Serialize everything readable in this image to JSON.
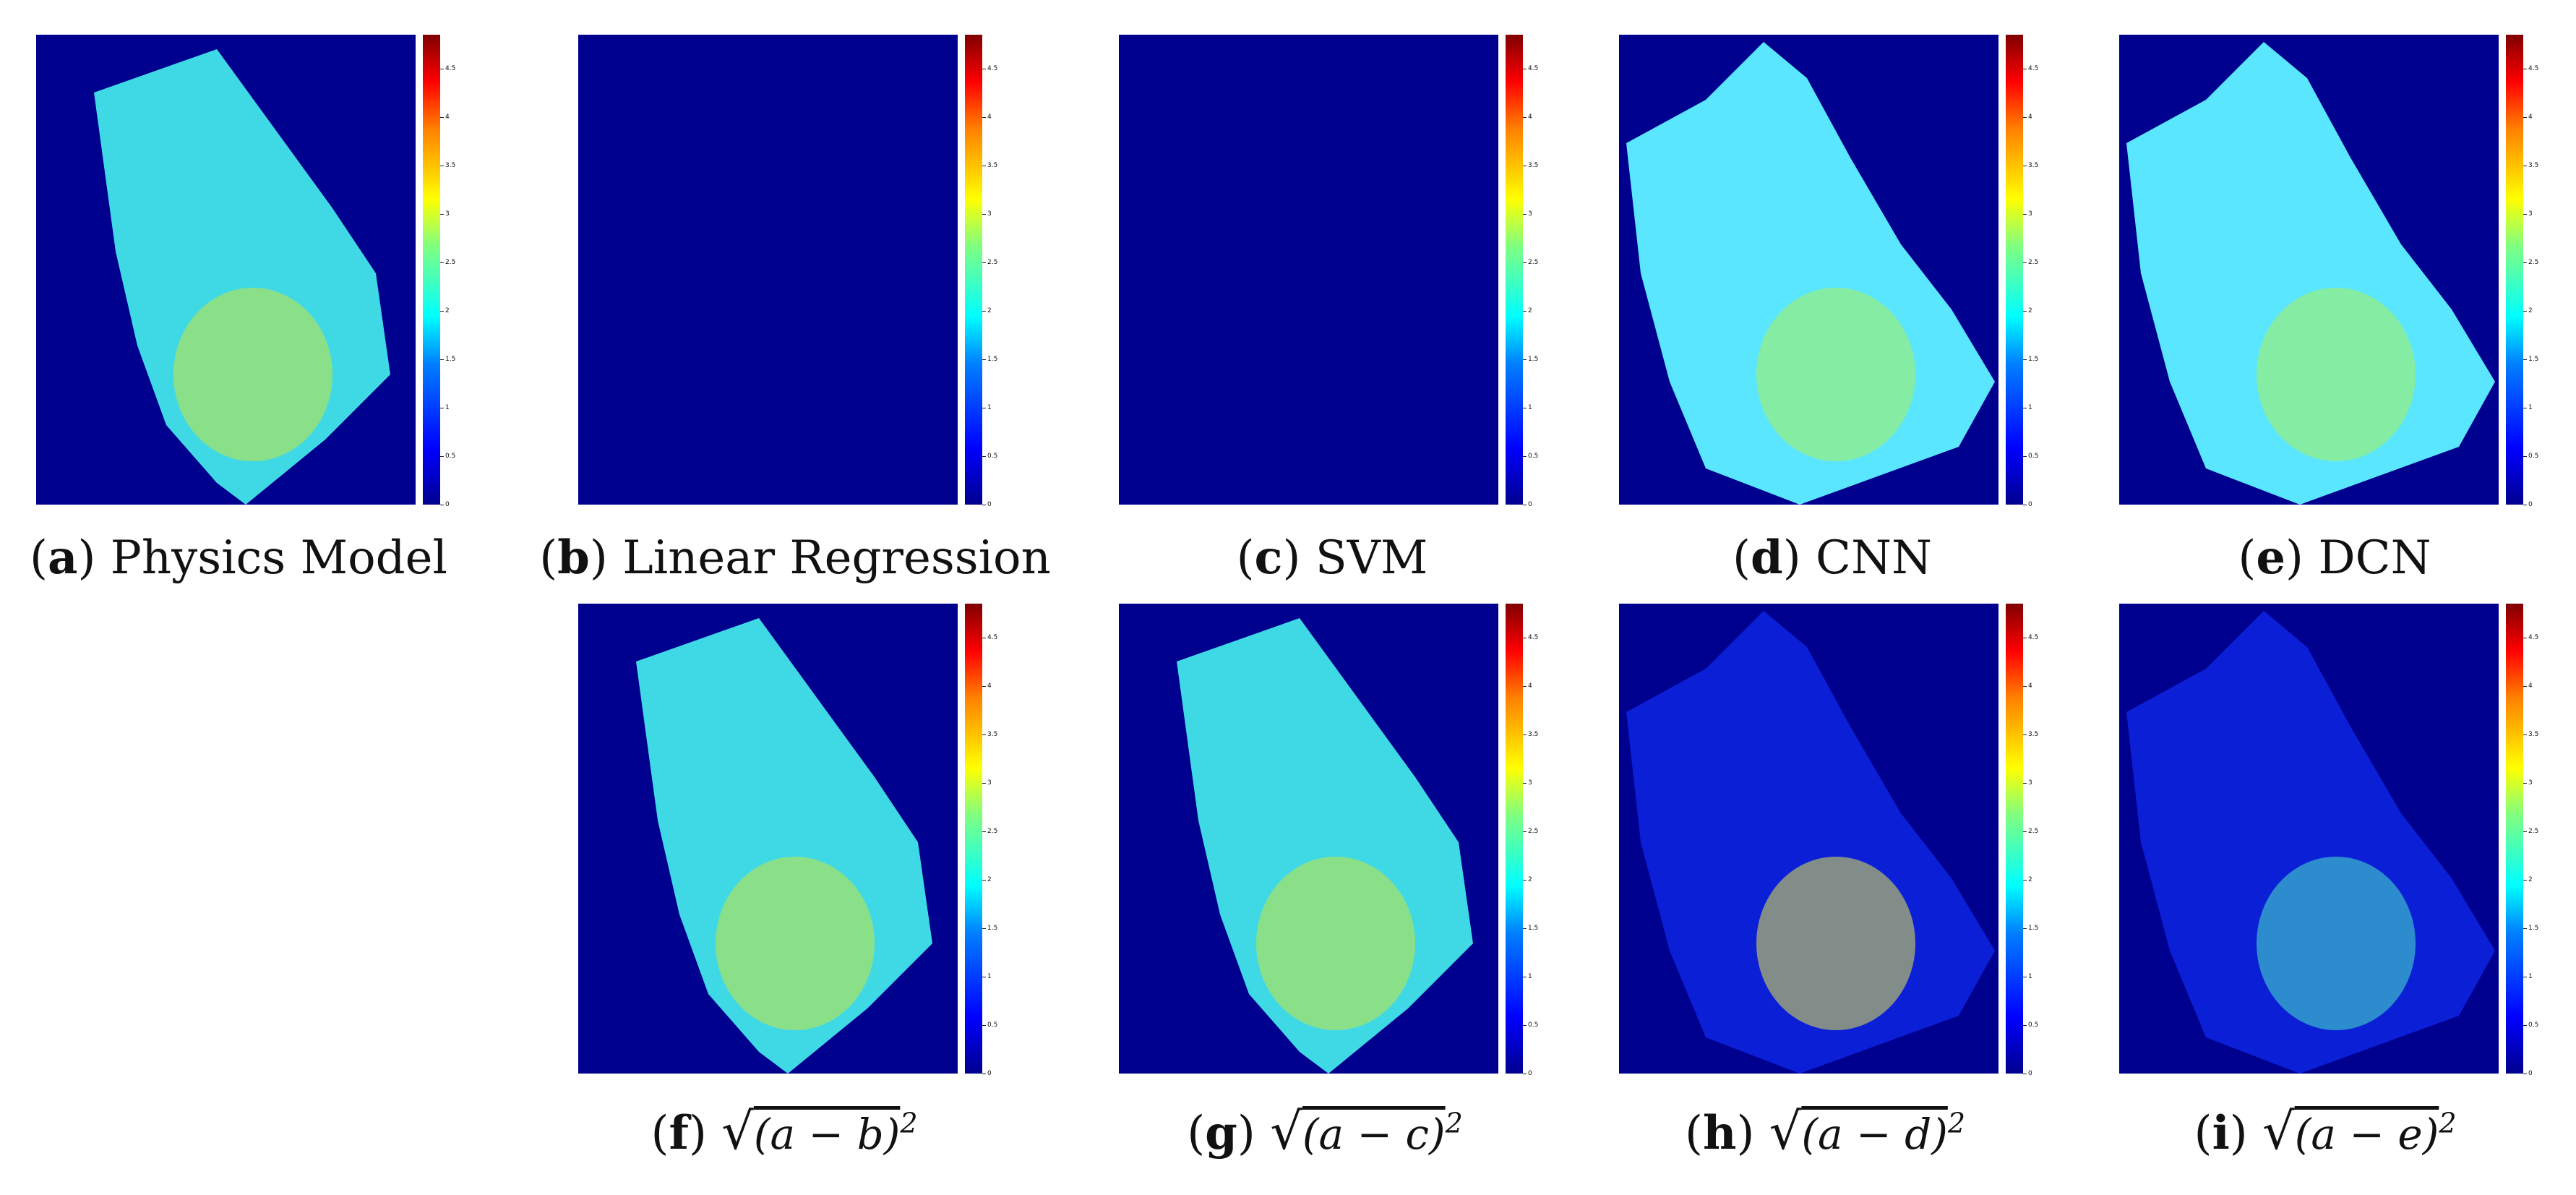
{
  "colorbar": {
    "ticks": [
      "4.5",
      "4",
      "3.5",
      "3",
      "2.5",
      "2",
      "1.5",
      "1",
      "0.5",
      "0"
    ],
    "tick_values": [
      4.5,
      4,
      3.5,
      3,
      2.5,
      2,
      1.5,
      1,
      0.5,
      0
    ],
    "max": 4.85,
    "colormap": "jet"
  },
  "panels": [
    {
      "key": "a",
      "name": "Physics Model",
      "fill": "#3fd9e6",
      "hot": "#c8e63c",
      "empty": false
    },
    {
      "key": "b",
      "name": "Linear Regression",
      "fill": "#00008f",
      "hot": "#00008f",
      "empty": true
    },
    {
      "key": "c",
      "name": "SVM",
      "fill": "#00008f",
      "hot": "#00008f",
      "empty": true
    },
    {
      "key": "d",
      "name": "CNN",
      "fill": "#5ae6ff",
      "hot": "#aaf05a",
      "empty": false
    },
    {
      "key": "e",
      "name": "DCN",
      "fill": "#5ae6ff",
      "hot": "#aaf05a",
      "empty": false
    },
    {
      "key": "f",
      "name": "(a − b)",
      "fill": "#3fd9e6",
      "hot": "#c8e63c",
      "empty": false
    },
    {
      "key": "g",
      "name": "(a − c)",
      "fill": "#3fd9e6",
      "hot": "#c8e63c",
      "empty": false
    },
    {
      "key": "h",
      "name": "(a − d)",
      "fill": "#0a1fd6",
      "hot": "#e6e64a",
      "empty": false
    },
    {
      "key": "i",
      "name": "(a − e)",
      "fill": "#0a1fd6",
      "hot": "#4ae6c8",
      "empty": false
    }
  ],
  "captions": {
    "a": {
      "letter": "a",
      "text": "Physics Model"
    },
    "b": {
      "letter": "b",
      "text": "Linear Regression"
    },
    "c": {
      "letter": "c",
      "text": "SVM"
    },
    "d": {
      "letter": "d",
      "text": "CNN"
    },
    "e": {
      "letter": "e",
      "text": "DCN"
    },
    "f": {
      "letter": "f",
      "expr": "(a − b)",
      "exp": "2"
    },
    "g": {
      "letter": "g",
      "expr": "(a − c)",
      "exp": "2"
    },
    "h": {
      "letter": "h",
      "expr": "(a − d)",
      "exp": "2"
    },
    "i": {
      "letter": "i",
      "expr": "(a − e)",
      "exp": "2"
    }
  },
  "parens": {
    "open": "(",
    "close": ")"
  },
  "sqrt_symbol": "√"
}
